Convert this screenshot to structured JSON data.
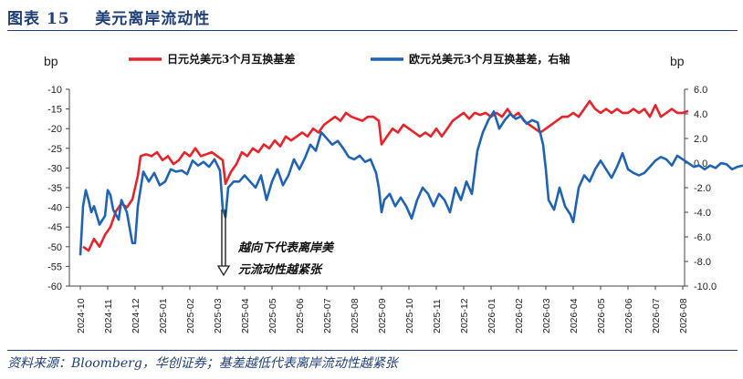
{
  "header": {
    "figure_label": "图表 15",
    "figure_title": "美元离岸流动性"
  },
  "footer": {
    "source": "资料来源：Bloomberg，华创证券；基差越低代表离岸流动性越紧张"
  },
  "colors": {
    "series_red": "#e8232a",
    "series_blue": "#1f63b4",
    "accent": "#1f3f7a"
  },
  "chart_data": {
    "type": "line",
    "left_unit": "bp",
    "right_unit": "bp",
    "left_ylim": [
      -60,
      -10
    ],
    "left_yticks": [
      "-10",
      "-15",
      "-20",
      "-25",
      "-30",
      "-35",
      "-40",
      "-45",
      "-50",
      "-55",
      "-60"
    ],
    "right_ylim": [
      -10,
      6
    ],
    "right_yticks": [
      "6.0",
      "4.0",
      "2.0",
      "0.0",
      "-2.0",
      "-4.0",
      "-6.0",
      "-8.0",
      "-10.0"
    ],
    "x_categories": [
      "2024-10",
      "2024-11",
      "2024-12",
      "2025-01",
      "2025-02",
      "2025-03",
      "2025-04",
      "2025-05",
      "2025-06",
      "2025-07",
      "2025-08",
      "2025-09",
      "2025-10",
      "2025-11",
      "2025-12",
      "2026-01",
      "2026-02",
      "2026-03",
      "2026-04",
      "2026-05",
      "2026-06",
      "2026-07",
      "2026-08"
    ],
    "annotation": {
      "line1": "越向下代表离岸美",
      "line2": "元流动性越紧张",
      "at": 5.2
    },
    "series": [
      {
        "name": "日元兑美元3个月互换基差",
        "axis": "left",
        "color": "#e8232a",
        "points": [
          [
            0.1,
            -50
          ],
          [
            0.3,
            -51
          ],
          [
            0.5,
            -48
          ],
          [
            0.7,
            -50
          ],
          [
            0.9,
            -47
          ],
          [
            1.1,
            -45
          ],
          [
            1.3,
            -41
          ],
          [
            1.5,
            -39
          ],
          [
            1.7,
            -40
          ],
          [
            1.9,
            -38
          ],
          [
            2.1,
            -32
          ],
          [
            2.2,
            -27
          ],
          [
            2.4,
            -26.5
          ],
          [
            2.6,
            -27
          ],
          [
            2.8,
            -26
          ],
          [
            3.0,
            -28
          ],
          [
            3.2,
            -27
          ],
          [
            3.4,
            -29
          ],
          [
            3.6,
            -28
          ],
          [
            3.8,
            -26
          ],
          [
            4.0,
            -27
          ],
          [
            4.2,
            -25
          ],
          [
            4.4,
            -27
          ],
          [
            4.6,
            -26.5
          ],
          [
            4.8,
            -26
          ],
          [
            5.0,
            -27
          ],
          [
            5.2,
            -28
          ],
          [
            5.3,
            -34
          ],
          [
            5.5,
            -31
          ],
          [
            5.7,
            -29
          ],
          [
            5.9,
            -26
          ],
          [
            6.1,
            -27
          ],
          [
            6.3,
            -25
          ],
          [
            6.5,
            -26
          ],
          [
            6.7,
            -24
          ],
          [
            6.9,
            -25
          ],
          [
            7.1,
            -23
          ],
          [
            7.3,
            -24.5
          ],
          [
            7.5,
            -22
          ],
          [
            7.7,
            -23
          ],
          [
            7.9,
            -22
          ],
          [
            8.1,
            -21
          ],
          [
            8.3,
            -22
          ],
          [
            8.5,
            -20
          ],
          [
            8.7,
            -21
          ],
          [
            8.9,
            -19
          ],
          [
            9.1,
            -18
          ],
          [
            9.3,
            -17
          ],
          [
            9.5,
            -18
          ],
          [
            9.7,
            -16
          ],
          [
            9.9,
            -17
          ],
          [
            10.1,
            -17.5
          ],
          [
            10.3,
            -18
          ],
          [
            10.5,
            -17
          ],
          [
            10.7,
            -17
          ],
          [
            10.9,
            -18
          ],
          [
            11.0,
            -24
          ],
          [
            11.2,
            -22
          ],
          [
            11.4,
            -20
          ],
          [
            11.6,
            -21
          ],
          [
            11.8,
            -19
          ],
          [
            12.0,
            -20
          ],
          [
            12.2,
            -21
          ],
          [
            12.4,
            -22
          ],
          [
            12.6,
            -21
          ],
          [
            12.8,
            -22
          ],
          [
            13.0,
            -20
          ],
          [
            13.2,
            -22
          ],
          [
            13.4,
            -20
          ],
          [
            13.6,
            -18
          ],
          [
            13.8,
            -17
          ],
          [
            14.0,
            -16
          ],
          [
            14.2,
            -17.5
          ],
          [
            14.4,
            -16
          ],
          [
            14.6,
            -16.5
          ],
          [
            14.8,
            -16
          ],
          [
            15.0,
            -17
          ],
          [
            15.2,
            -16
          ],
          [
            15.4,
            -17
          ],
          [
            15.6,
            -15
          ],
          [
            15.8,
            -17
          ],
          [
            16.0,
            -16
          ],
          [
            16.2,
            -18
          ],
          [
            16.4,
            -19
          ],
          [
            16.6,
            -20
          ],
          [
            16.8,
            -21
          ],
          [
            17.0,
            -20
          ],
          [
            17.2,
            -19
          ],
          [
            17.4,
            -18
          ],
          [
            17.6,
            -17
          ],
          [
            17.8,
            -17
          ],
          [
            18.0,
            -16
          ],
          [
            18.2,
            -17
          ],
          [
            18.4,
            -15
          ],
          [
            18.6,
            -13
          ],
          [
            18.8,
            -15
          ],
          [
            19.0,
            -16
          ],
          [
            19.2,
            -15
          ],
          [
            19.4,
            -16
          ],
          [
            19.6,
            -15
          ],
          [
            19.8,
            -16
          ],
          [
            20.0,
            -16
          ],
          [
            20.2,
            -15
          ],
          [
            20.4,
            -16
          ],
          [
            20.6,
            -15
          ],
          [
            20.8,
            -17
          ],
          [
            21.0,
            -14
          ],
          [
            21.2,
            -17
          ],
          [
            21.4,
            -16
          ],
          [
            21.6,
            -15
          ],
          [
            21.8,
            -16
          ],
          [
            22.0,
            -16
          ],
          [
            22.2,
            -15.5
          ]
        ]
      },
      {
        "name": "欧元兑美元3个月互换基差，右轴",
        "axis": "right",
        "color": "#1f63b4",
        "points": [
          [
            0.0,
            -7.5
          ],
          [
            0.1,
            -3.5
          ],
          [
            0.2,
            -2.2
          ],
          [
            0.3,
            -3.0
          ],
          [
            0.4,
            -4.0
          ],
          [
            0.5,
            -3.5
          ],
          [
            0.7,
            -5.0
          ],
          [
            0.9,
            -4.3
          ],
          [
            1.0,
            -2.2
          ],
          [
            1.1,
            -2.6
          ],
          [
            1.2,
            -3.8
          ],
          [
            1.4,
            -4.6
          ],
          [
            1.5,
            -3.0
          ],
          [
            1.7,
            -4.0
          ],
          [
            1.9,
            -6.5
          ],
          [
            2.0,
            -6.5
          ],
          [
            2.1,
            -3.5
          ],
          [
            2.3,
            -0.7
          ],
          [
            2.5,
            -1.5
          ],
          [
            2.7,
            -0.8
          ],
          [
            2.9,
            -1.8
          ],
          [
            3.1,
            -1.5
          ],
          [
            3.3,
            -0.5
          ],
          [
            3.5,
            -0.7
          ],
          [
            3.7,
            -0.6
          ],
          [
            3.9,
            -0.9
          ],
          [
            4.1,
            0.2
          ],
          [
            4.3,
            -0.2
          ],
          [
            4.5,
            0.1
          ],
          [
            4.7,
            -0.3
          ],
          [
            4.9,
            0.3
          ],
          [
            5.1,
            -0.6
          ],
          [
            5.2,
            -3.7
          ],
          [
            5.3,
            -4.4
          ],
          [
            5.4,
            -2.0
          ],
          [
            5.6,
            -1.5
          ],
          [
            5.8,
            -1.5
          ],
          [
            6.0,
            -1.0
          ],
          [
            6.2,
            -1.5
          ],
          [
            6.4,
            -2.0
          ],
          [
            6.6,
            -1.0
          ],
          [
            6.8,
            -3.0
          ],
          [
            7.0,
            -1.5
          ],
          [
            7.2,
            -0.5
          ],
          [
            7.4,
            -1.8
          ],
          [
            7.6,
            -1.0
          ],
          [
            7.8,
            0.3
          ],
          [
            8.0,
            -0.5
          ],
          [
            8.2,
            0.4
          ],
          [
            8.4,
            1.5
          ],
          [
            8.6,
            1.0
          ],
          [
            8.8,
            2.5
          ],
          [
            9.0,
            2.0
          ],
          [
            9.2,
            1.5
          ],
          [
            9.4,
            1.8
          ],
          [
            9.6,
            1.2
          ],
          [
            9.8,
            0.5
          ],
          [
            10.0,
            0.3
          ],
          [
            10.2,
            0.6
          ],
          [
            10.4,
            0.1
          ],
          [
            10.6,
            0.3
          ],
          [
            10.8,
            -0.8
          ],
          [
            10.9,
            -2.0
          ],
          [
            11.0,
            -4.0
          ],
          [
            11.1,
            -3.0
          ],
          [
            11.3,
            -2.5
          ],
          [
            11.5,
            -3.5
          ],
          [
            11.7,
            -2.8
          ],
          [
            11.9,
            -3.5
          ],
          [
            12.1,
            -4.5
          ],
          [
            12.3,
            -3.0
          ],
          [
            12.5,
            -2.0
          ],
          [
            12.7,
            -2.5
          ],
          [
            12.9,
            -3.5
          ],
          [
            13.1,
            -2.5
          ],
          [
            13.3,
            -3.0
          ],
          [
            13.5,
            -4.0
          ],
          [
            13.7,
            -2.0
          ],
          [
            13.9,
            -3.0
          ],
          [
            14.1,
            -1.5
          ],
          [
            14.3,
            -2.5
          ],
          [
            14.5,
            1.0
          ],
          [
            14.7,
            2.5
          ],
          [
            14.9,
            3.5
          ],
          [
            15.1,
            4.2
          ],
          [
            15.3,
            2.8
          ],
          [
            15.5,
            3.5
          ],
          [
            15.7,
            4.0
          ],
          [
            15.9,
            3.6
          ],
          [
            16.1,
            3.8
          ],
          [
            16.3,
            3.2
          ],
          [
            16.5,
            3.5
          ],
          [
            16.7,
            3.3
          ],
          [
            16.9,
            1.5
          ],
          [
            17.0,
            -0.5
          ],
          [
            17.1,
            -3.0
          ],
          [
            17.3,
            -3.8
          ],
          [
            17.5,
            -2.0
          ],
          [
            17.7,
            -3.5
          ],
          [
            17.9,
            -4.2
          ],
          [
            18.0,
            -4.8
          ],
          [
            18.2,
            -2.0
          ],
          [
            18.4,
            -1.0
          ],
          [
            18.6,
            -1.5
          ],
          [
            18.8,
            -0.5
          ],
          [
            19.0,
            0.2
          ],
          [
            19.2,
            -0.5
          ],
          [
            19.4,
            -1.2
          ],
          [
            19.6,
            -0.3
          ],
          [
            19.8,
            0.8
          ],
          [
            20.0,
            -0.5
          ],
          [
            20.2,
            -0.8
          ],
          [
            20.4,
            -1.0
          ],
          [
            20.6,
            -0.8
          ],
          [
            20.8,
            -0.3
          ],
          [
            21.0,
            0.2
          ],
          [
            21.2,
            0.5
          ],
          [
            21.4,
            0.3
          ],
          [
            21.6,
            -0.2
          ],
          [
            21.8,
            0.6
          ],
          [
            22.0,
            0.3
          ],
          [
            22.2,
            0.0
          ],
          [
            22.4,
            -0.3
          ],
          [
            22.6,
            -0.2
          ],
          [
            22.8,
            -0.5
          ],
          [
            23.0,
            -0.2
          ],
          [
            23.2,
            -0.4
          ],
          [
            23.4,
            0.0
          ],
          [
            23.6,
            -0.1
          ],
          [
            23.8,
            -0.5
          ],
          [
            24.0,
            -0.3
          ],
          [
            24.2,
            -0.2
          ]
        ]
      }
    ]
  }
}
